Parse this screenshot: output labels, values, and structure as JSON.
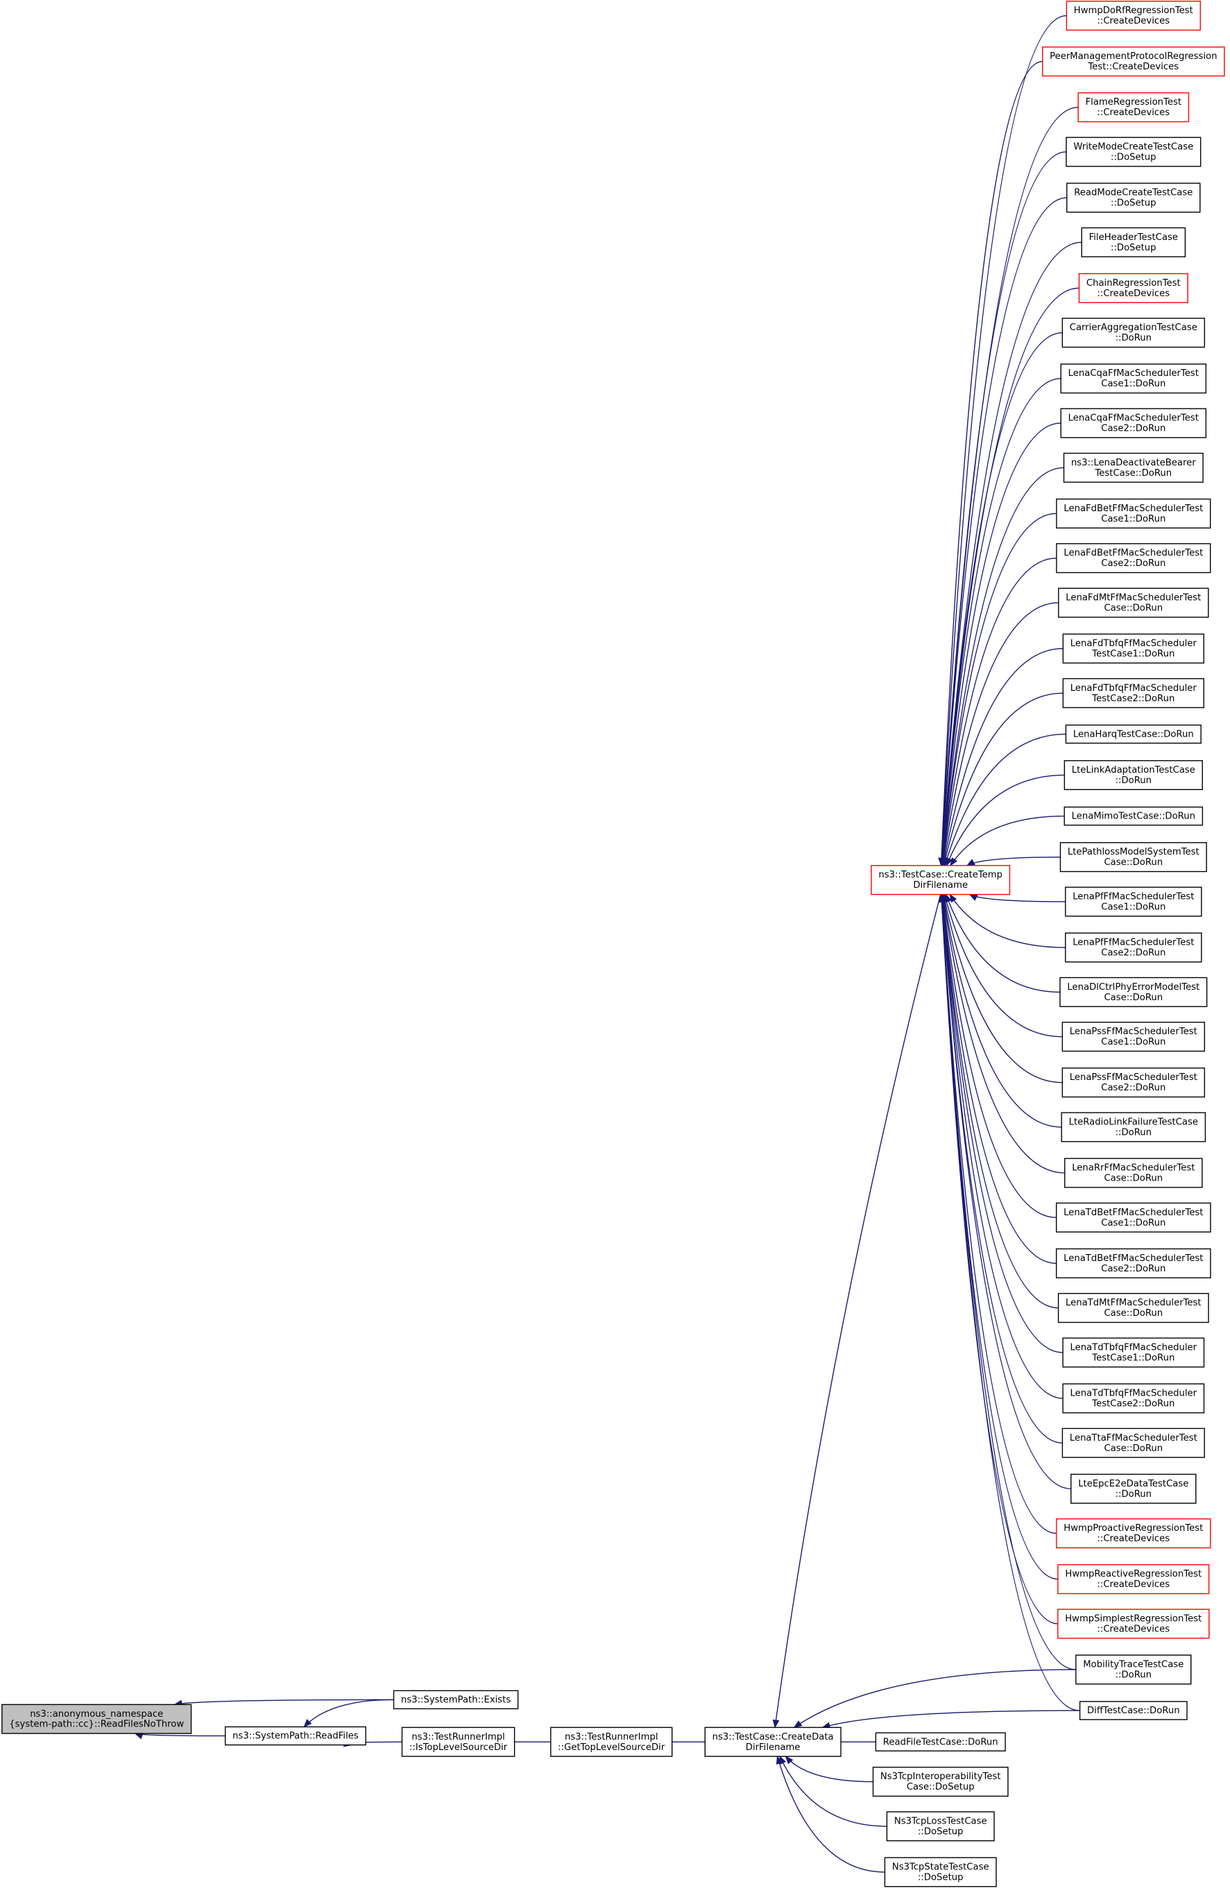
{
  "nodes": [
    {
      "lines": [
        "ns3::anonymous_namespace",
        "{system-path::cc}::ReadFilesNoThrow"
      ],
      "color": "#000000",
      "fill": "#bfbfbf"
    },
    {
      "lines": [
        "ns3::SystemPath::ReadFiles"
      ],
      "color": "#000000"
    },
    {
      "lines": [
        "ns3::SystemPath::Exists"
      ],
      "color": "#000000"
    },
    {
      "lines": [
        "ns3::TestRunnerImpl",
        "::IsTopLevelSourceDir"
      ],
      "color": "#000000"
    },
    {
      "lines": [
        "ns3::TestRunnerImpl",
        "::GetTopLevelSourceDir"
      ],
      "color": "#000000"
    },
    {
      "lines": [
        "ns3::TestCase::CreateData",
        "DirFilename"
      ],
      "color": "#000000"
    },
    {
      "lines": [
        "ns3::TestCase::CreateTemp",
        "DirFilename"
      ],
      "color": "#ff0000"
    },
    {
      "lines": [
        "HwmpDoRfRegressionTest",
        "::CreateDevices"
      ],
      "color": "#ff0000"
    },
    {
      "lines": [
        "PeerManagementProtocolRegression",
        "Test::CreateDevices"
      ],
      "color": "#ff0000"
    },
    {
      "lines": [
        "FlameRegressionTest",
        "::CreateDevices"
      ],
      "color": "#ff0000"
    },
    {
      "lines": [
        "WriteModeCreateTestCase",
        "::DoSetup"
      ],
      "color": "#000000"
    },
    {
      "lines": [
        "ReadModeCreateTestCase",
        "::DoSetup"
      ],
      "color": "#000000"
    },
    {
      "lines": [
        "FileHeaderTestCase",
        "::DoSetup"
      ],
      "color": "#000000"
    },
    {
      "lines": [
        "ChainRegressionTest",
        "::CreateDevices"
      ],
      "color": "#ff0000"
    },
    {
      "lines": [
        "CarrierAggregationTestCase",
        "::DoRun"
      ],
      "color": "#000000"
    },
    {
      "lines": [
        "LenaCqaFfMacSchedulerTest",
        "Case1::DoRun"
      ],
      "color": "#000000"
    },
    {
      "lines": [
        "LenaCqaFfMacSchedulerTest",
        "Case2::DoRun"
      ],
      "color": "#000000"
    },
    {
      "lines": [
        "ns3::LenaDeactivateBearer",
        "TestCase::DoRun"
      ],
      "color": "#000000"
    },
    {
      "lines": [
        "LenaFdBetFfMacSchedulerTest",
        "Case1::DoRun"
      ],
      "color": "#000000"
    },
    {
      "lines": [
        "LenaFdBetFfMacSchedulerTest",
        "Case2::DoRun"
      ],
      "color": "#000000"
    },
    {
      "lines": [
        "LenaFdMtFfMacSchedulerTest",
        "Case::DoRun"
      ],
      "color": "#000000"
    },
    {
      "lines": [
        "LenaFdTbfqFfMacScheduler",
        "TestCase1::DoRun"
      ],
      "color": "#000000"
    },
    {
      "lines": [
        "LenaFdTbfqFfMacScheduler",
        "TestCase2::DoRun"
      ],
      "color": "#000000"
    },
    {
      "lines": [
        "LenaHarqTestCase::DoRun"
      ],
      "color": "#000000"
    },
    {
      "lines": [
        "LteLinkAdaptationTestCase",
        "::DoRun"
      ],
      "color": "#000000"
    },
    {
      "lines": [
        "LenaMimoTestCase::DoRun"
      ],
      "color": "#000000"
    },
    {
      "lines": [
        "LtePathlossModelSystemTest",
        "Case::DoRun"
      ],
      "color": "#000000"
    },
    {
      "lines": [
        "LenaPfFfMacSchedulerTest",
        "Case1::DoRun"
      ],
      "color": "#000000"
    },
    {
      "lines": [
        "LenaPfFfMacSchedulerTest",
        "Case2::DoRun"
      ],
      "color": "#000000"
    },
    {
      "lines": [
        "LenaDlCtrlPhyErrorModelTest",
        "Case::DoRun"
      ],
      "color": "#000000"
    },
    {
      "lines": [
        "LenaPssFfMacSchedulerTest",
        "Case1::DoRun"
      ],
      "color": "#000000"
    },
    {
      "lines": [
        "LenaPssFfMacSchedulerTest",
        "Case2::DoRun"
      ],
      "color": "#000000"
    },
    {
      "lines": [
        "LteRadioLinkFailureTestCase",
        "::DoRun"
      ],
      "color": "#000000"
    },
    {
      "lines": [
        "LenaRrFfMacSchedulerTest",
        "Case::DoRun"
      ],
      "color": "#000000"
    },
    {
      "lines": [
        "LenaTdBetFfMacSchedulerTest",
        "Case1::DoRun"
      ],
      "color": "#000000"
    },
    {
      "lines": [
        "LenaTdBetFfMacSchedulerTest",
        "Case2::DoRun"
      ],
      "color": "#000000"
    },
    {
      "lines": [
        "LenaTdMtFfMacSchedulerTest",
        "Case::DoRun"
      ],
      "color": "#000000"
    },
    {
      "lines": [
        "LenaTdTbfqFfMacScheduler",
        "TestCase1::DoRun"
      ],
      "color": "#000000"
    },
    {
      "lines": [
        "LenaTdTbfqFfMacScheduler",
        "TestCase2::DoRun"
      ],
      "color": "#000000"
    },
    {
      "lines": [
        "LenaTtaFfMacSchedulerTest",
        "Case::DoRun"
      ],
      "color": "#000000"
    },
    {
      "lines": [
        "LteEpcE2eDataTestCase",
        "::DoRun"
      ],
      "color": "#000000"
    },
    {
      "lines": [
        "HwmpProactiveRegressionTest",
        "::CreateDevices"
      ],
      "color": "#ff0000"
    },
    {
      "lines": [
        "HwmpReactiveRegressionTest",
        "::CreateDevices"
      ],
      "color": "#ff0000"
    },
    {
      "lines": [
        "HwmpSimplestRegressionTest",
        "::CreateDevices"
      ],
      "color": "#ff0000"
    },
    {
      "lines": [
        "MobilityTraceTestCase",
        "::DoRun"
      ],
      "color": "#000000"
    },
    {
      "lines": [
        "DiffTestCase::DoRun"
      ],
      "color": "#000000"
    },
    {
      "lines": [
        "ReadFileTestCase::DoRun"
      ],
      "color": "#000000"
    },
    {
      "lines": [
        "Ns3TcpInteroperabilityTest",
        "Case::DoSetup"
      ],
      "color": "#000000"
    },
    {
      "lines": [
        "Ns3TcpLossTestCase",
        "::DoSetup"
      ],
      "color": "#000000"
    },
    {
      "lines": [
        "Ns3TcpStateTestCase",
        "::DoSetup"
      ],
      "color": "#000000"
    }
  ]
}
